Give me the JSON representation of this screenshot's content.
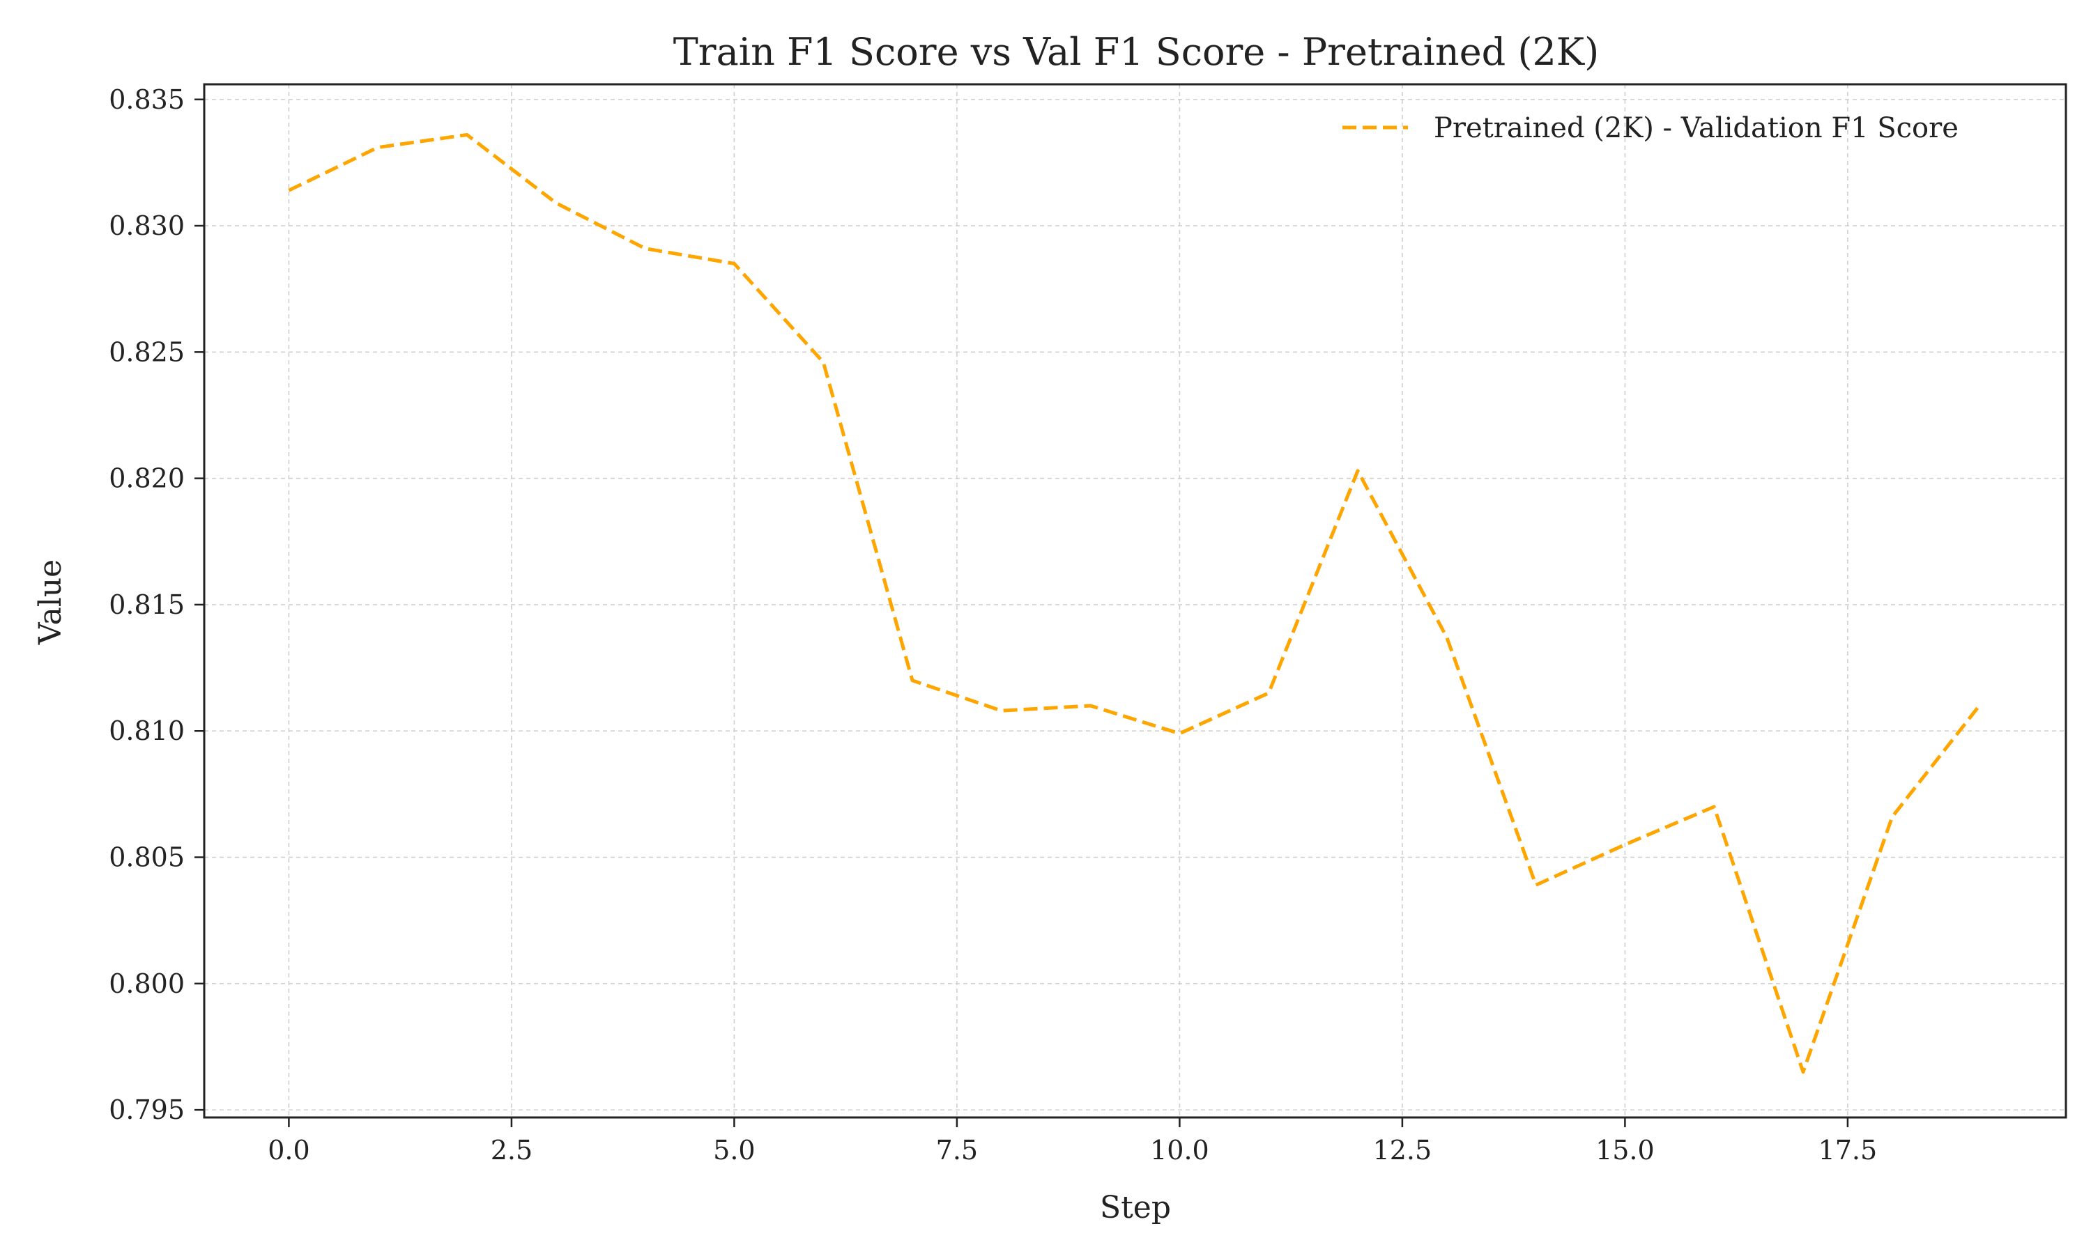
{
  "chart_data": {
    "type": "line",
    "title": "Train F1 Score vs Val F1 Score - Pretrained (2K)",
    "xlabel": "Step",
    "ylabel": "Value",
    "xlim": [
      -0.95,
      19.95
    ],
    "ylim": [
      0.7947,
      0.8356
    ],
    "x_ticks": [
      0.0,
      2.5,
      5.0,
      7.5,
      10.0,
      12.5,
      15.0,
      17.5
    ],
    "x_tick_labels": [
      "0.0",
      "2.5",
      "5.0",
      "7.5",
      "10.0",
      "12.5",
      "15.0",
      "17.5"
    ],
    "y_ticks": [
      0.795,
      0.8,
      0.805,
      0.81,
      0.815,
      0.82,
      0.825,
      0.83,
      0.835
    ],
    "y_tick_labels": [
      "0.795",
      "0.800",
      "0.805",
      "0.810",
      "0.815",
      "0.820",
      "0.825",
      "0.830",
      "0.835"
    ],
    "grid": true,
    "legend_position": "top-right",
    "series": [
      {
        "name": "Pretrained (2K) - Validation F1 Score",
        "color": "#FFA500",
        "line_style": "dashed",
        "x": [
          0,
          1,
          2,
          3,
          4,
          5,
          6,
          7,
          8,
          9,
          10,
          11,
          12,
          13,
          14,
          15,
          16,
          17,
          18,
          19
        ],
        "y": [
          0.8314,
          0.8331,
          0.8336,
          0.8309,
          0.8291,
          0.8285,
          0.8246,
          0.812,
          0.8108,
          0.811,
          0.8099,
          0.8115,
          0.8203,
          0.8137,
          0.8039,
          0.8055,
          0.807,
          0.7965,
          0.8066,
          0.8111
        ]
      }
    ]
  }
}
